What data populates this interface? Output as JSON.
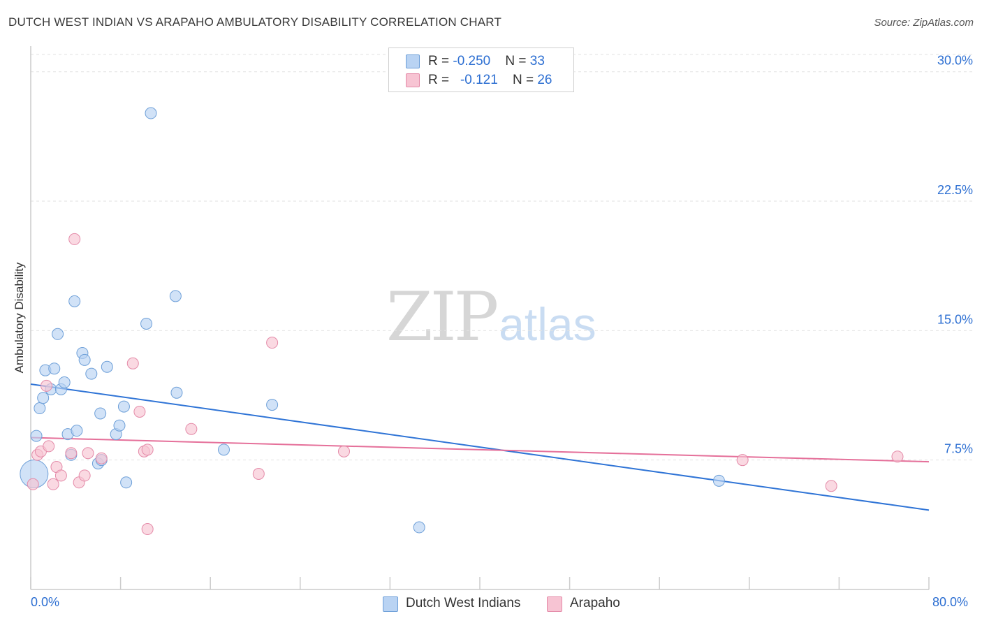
{
  "header": {
    "title": "DUTCH WEST INDIAN VS ARAPAHO AMBULATORY DISABILITY CORRELATION CHART",
    "source": "Source: ZipAtlas.com"
  },
  "watermark": {
    "zip": "ZIP",
    "atlas": "atlas"
  },
  "legend": {
    "rows": [
      {
        "r_label": "R = ",
        "r_value": "-0.250",
        "n_label": "N = ",
        "n_value": "33"
      },
      {
        "r_label": "R = ",
        "r_value": "-0.121",
        "n_label": "N = ",
        "n_value": "26"
      }
    ]
  },
  "colors": {
    "blue_fill": "#b9d3f3",
    "blue_stroke": "#6d9fd8",
    "blue_line": "#2f74d6",
    "pink_fill": "#f7c4d3",
    "pink_stroke": "#e48aa8",
    "pink_line": "#e5709a",
    "grid": "#e2e2e2",
    "axis": "#cccccc",
    "tick_text": "#2d6fd2"
  },
  "chart_data": {
    "type": "scatter",
    "title": "DUTCH WEST INDIAN VS ARAPAHO AMBULATORY DISABILITY CORRELATION CHART",
    "xlabel": "",
    "ylabel": "Ambulatory Disability",
    "xlim": [
      0,
      80
    ],
    "ylim": [
      0,
      31
    ],
    "x_tick_labels": [
      "0.0%",
      "80.0%"
    ],
    "y_ticks": [
      7.5,
      15.0,
      22.5,
      30.0
    ],
    "y_tick_labels": [
      "7.5%",
      "15.0%",
      "22.5%",
      "30.0%"
    ],
    "grid": true,
    "legend_position": "top-center",
    "series": [
      {
        "name": "Dutch West Indians",
        "color": "#6d9fd8",
        "points": [
          [
            0.3,
            6.7
          ],
          [
            0.5,
            8.9
          ],
          [
            0.8,
            10.5
          ],
          [
            1.1,
            11.1
          ],
          [
            1.3,
            12.7
          ],
          [
            1.8,
            11.6
          ],
          [
            2.1,
            12.8
          ],
          [
            2.4,
            14.8
          ],
          [
            2.7,
            11.6
          ],
          [
            3.0,
            12.0
          ],
          [
            3.3,
            9.0
          ],
          [
            3.6,
            7.8
          ],
          [
            4.1,
            9.2
          ],
          [
            4.6,
            13.7
          ],
          [
            4.8,
            13.3
          ],
          [
            3.9,
            16.7
          ],
          [
            5.4,
            12.5
          ],
          [
            6.0,
            7.3
          ],
          [
            6.2,
            10.2
          ],
          [
            6.3,
            7.5
          ],
          [
            6.8,
            12.9
          ],
          [
            7.6,
            9.0
          ],
          [
            7.9,
            9.5
          ],
          [
            8.3,
            10.6
          ],
          [
            8.5,
            6.2
          ],
          [
            10.3,
            15.4
          ],
          [
            10.7,
            27.6
          ],
          [
            12.9,
            17.0
          ],
          [
            13.0,
            11.4
          ],
          [
            17.2,
            8.1
          ],
          [
            21.5,
            10.7
          ],
          [
            34.6,
            3.6
          ],
          [
            61.3,
            6.3
          ]
        ],
        "trend": {
          "x": [
            0,
            80
          ],
          "y": [
            11.9,
            4.6
          ]
        }
      },
      {
        "name": "Arapaho",
        "color": "#e48aa8",
        "points": [
          [
            0.2,
            6.1
          ],
          [
            0.6,
            7.8
          ],
          [
            0.9,
            8.0
          ],
          [
            1.4,
            11.8
          ],
          [
            1.6,
            8.3
          ],
          [
            2.0,
            6.1
          ],
          [
            2.3,
            7.1
          ],
          [
            2.7,
            6.6
          ],
          [
            3.6,
            7.9
          ],
          [
            3.9,
            20.3
          ],
          [
            4.3,
            6.2
          ],
          [
            4.8,
            6.6
          ],
          [
            5.1,
            7.9
          ],
          [
            6.3,
            7.6
          ],
          [
            9.1,
            13.1
          ],
          [
            9.7,
            10.3
          ],
          [
            10.1,
            8.0
          ],
          [
            10.4,
            8.1
          ],
          [
            10.4,
            3.5
          ],
          [
            14.3,
            9.3
          ],
          [
            20.3,
            6.7
          ],
          [
            21.5,
            14.3
          ],
          [
            27.9,
            8.0
          ],
          [
            63.4,
            7.5
          ],
          [
            71.3,
            6.0
          ],
          [
            77.2,
            7.7
          ]
        ],
        "trend": {
          "x": [
            0,
            80
          ],
          "y": [
            8.8,
            7.4
          ]
        }
      }
    ]
  },
  "bottom_legend": [
    {
      "label": "Dutch West Indians"
    },
    {
      "label": "Arapaho"
    }
  ]
}
